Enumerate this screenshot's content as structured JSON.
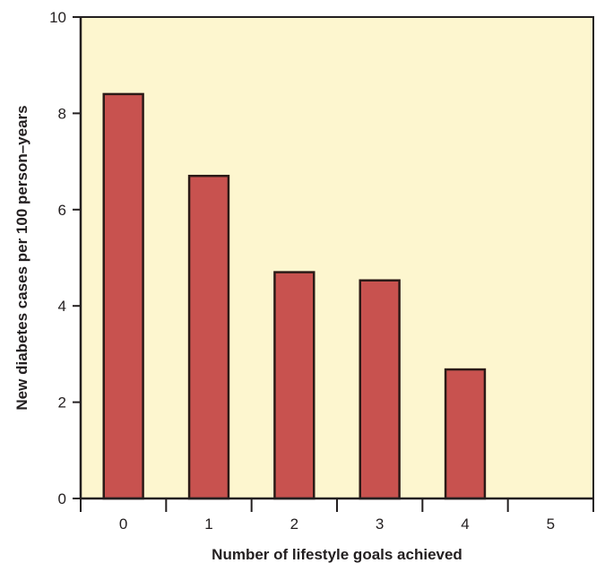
{
  "chart_data": {
    "type": "bar",
    "categories": [
      "0",
      "1",
      "2",
      "3",
      "4",
      "5"
    ],
    "values": [
      8.4,
      6.7,
      4.7,
      4.53,
      2.68,
      0
    ],
    "xlabel": "Number of lifestyle goals achieved",
    "ylabel": "New diabetes cases per 100 person–years",
    "ylim": [
      0,
      10
    ],
    "yticks": [
      "0",
      "2",
      "4",
      "6",
      "8",
      "10"
    ],
    "grid": false,
    "legend": "none",
    "colors": {
      "bar_fill": "#c8524f",
      "bar_stroke": "#2b1a17",
      "plot_background": "#fdf6cf",
      "axis": "#231f20"
    }
  }
}
